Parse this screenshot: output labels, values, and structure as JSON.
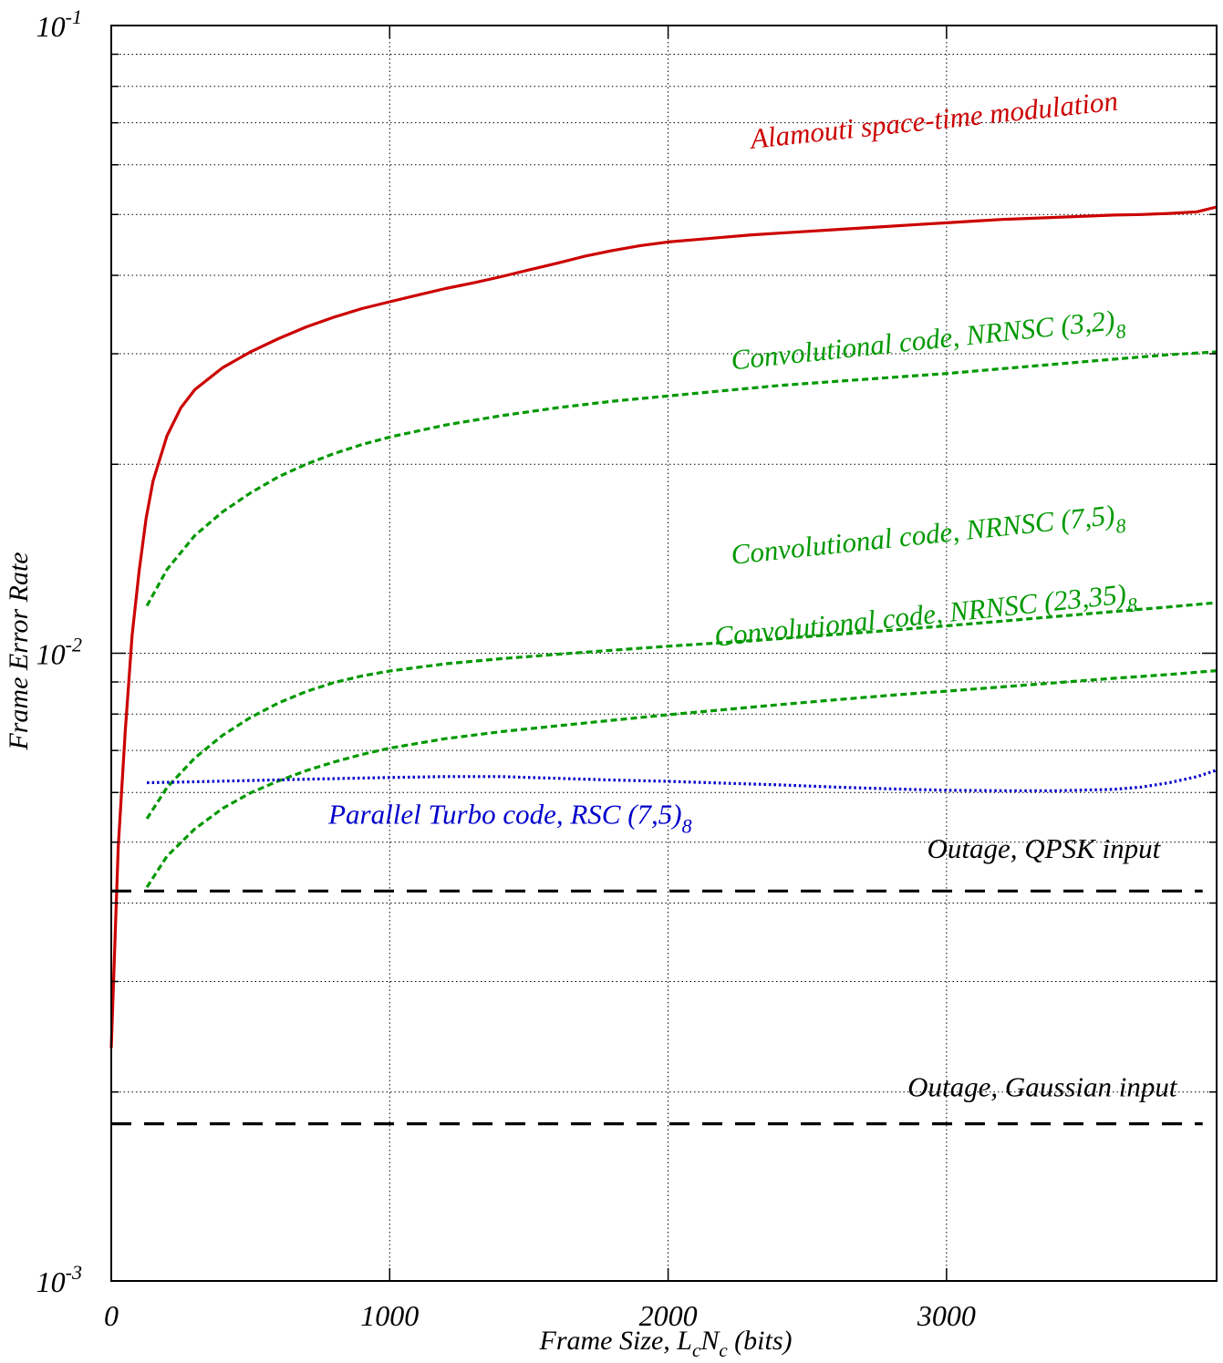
{
  "chart_data": {
    "type": "line",
    "title": "",
    "xlabel": {
      "main": "Frame Size, L",
      "sub1": "c",
      "mid": "N",
      "sub2": "c",
      "tail": " (bits)"
    },
    "ylabel": "Frame Error Rate",
    "xlim": [
      0,
      3970
    ],
    "ylim": [
      0.001,
      0.1
    ],
    "yscale": "log",
    "grid": true,
    "x_ticks": [
      {
        "value": 0,
        "label": "0"
      },
      {
        "value": 1000,
        "label": "1000"
      },
      {
        "value": 2000,
        "label": "2000"
      },
      {
        "value": 3000,
        "label": "3000"
      }
    ],
    "y_ticks": [
      {
        "value": 0.001,
        "base": "10",
        "exp": "-3"
      },
      {
        "value": 0.01,
        "base": "10",
        "exp": "-2"
      },
      {
        "value": 0.1,
        "base": "10",
        "exp": "-1"
      }
    ],
    "series": [
      {
        "label": "Alamouti space-time modulation",
        "label_sub": "",
        "color": "#cc0000",
        "style": "solid",
        "label_x": 2300,
        "label_y": 0.0637,
        "label_angle": -6,
        "x": [
          0,
          25,
          50,
          75,
          100,
          125,
          150,
          200,
          250,
          300,
          400,
          500,
          600,
          700,
          800,
          900,
          1000,
          1100,
          1200,
          1300,
          1400,
          1500,
          1600,
          1700,
          1800,
          1900,
          2000,
          2100,
          2200,
          2300,
          2400,
          2500,
          2600,
          2700,
          2800,
          2900,
          3000,
          3100,
          3200,
          3300,
          3400,
          3500,
          3600,
          3700,
          3800,
          3900,
          3970
        ],
        "y": [
          0.00235,
          0.0049,
          0.0075,
          0.0107,
          0.0135,
          0.0164,
          0.0188,
          0.0222,
          0.0246,
          0.0263,
          0.0285,
          0.0302,
          0.0317,
          0.0331,
          0.0343,
          0.0354,
          0.0363,
          0.0372,
          0.0381,
          0.0389,
          0.0398,
          0.0408,
          0.0418,
          0.0429,
          0.0438,
          0.0446,
          0.0452,
          0.0456,
          0.046,
          0.0464,
          0.0467,
          0.047,
          0.0473,
          0.0476,
          0.0479,
          0.0482,
          0.0485,
          0.0488,
          0.0491,
          0.0493,
          0.0495,
          0.0497,
          0.0499,
          0.05,
          0.0502,
          0.0505,
          0.0514
        ]
      },
      {
        "label": "Convolutional code, NRNSC (3,2)",
        "label_sub": "8",
        "color": "#009900",
        "style": "dashed",
        "label_x": 2230,
        "label_y": 0.0283,
        "label_angle": -6,
        "x": [
          128,
          200,
          300,
          400,
          500,
          600,
          700,
          800,
          900,
          1000,
          1200,
          1400,
          1600,
          1800,
          2000,
          2200,
          2400,
          2600,
          2800,
          3000,
          3200,
          3400,
          3600,
          3800,
          3970
        ],
        "y": [
          0.0119,
          0.0136,
          0.0154,
          0.0168,
          0.018,
          0.0191,
          0.02,
          0.0208,
          0.0215,
          0.0221,
          0.0231,
          0.0239,
          0.0246,
          0.0252,
          0.0257,
          0.0262,
          0.0267,
          0.0271,
          0.0275,
          0.0279,
          0.0284,
          0.0289,
          0.0294,
          0.0299,
          0.0302
        ]
      },
      {
        "label": "Convolutional code, NRNSC (7,5)",
        "label_sub": "8",
        "color": "#009900",
        "style": "dashed",
        "label_x": 2230,
        "label_y": 0.01386,
        "label_angle": -6,
        "x": [
          128,
          200,
          300,
          400,
          500,
          600,
          700,
          800,
          900,
          1000,
          1200,
          1400,
          1600,
          1800,
          2000,
          2200,
          2400,
          2600,
          2800,
          3000,
          3200,
          3400,
          3600,
          3800,
          3970
        ],
        "y": [
          0.00545,
          0.00611,
          0.00681,
          0.0074,
          0.0079,
          0.00833,
          0.00869,
          0.00898,
          0.0092,
          0.00937,
          0.00962,
          0.0098,
          0.00996,
          0.01011,
          0.01026,
          0.0104,
          0.01055,
          0.01071,
          0.01088,
          0.01106,
          0.01125,
          0.01145,
          0.01165,
          0.01185,
          0.01204
        ]
      },
      {
        "label": "Convolutional code, NRNSC (23,35)",
        "label_sub": "8",
        "color": "#009900",
        "style": "dashed",
        "label_x": 2170,
        "label_y": 0.01026,
        "label_angle": -6,
        "x": [
          128,
          200,
          300,
          400,
          500,
          600,
          700,
          800,
          900,
          1000,
          1200,
          1400,
          1600,
          1800,
          2000,
          2200,
          2400,
          2600,
          2800,
          3000,
          3200,
          3400,
          3600,
          3800,
          3970
        ],
        "y": [
          0.00424,
          0.00475,
          0.00525,
          0.00566,
          0.00599,
          0.00626,
          0.0065,
          0.00671,
          0.0069,
          0.00706,
          0.00731,
          0.0075,
          0.00766,
          0.00782,
          0.00798,
          0.00813,
          0.00828,
          0.00843,
          0.00857,
          0.0087,
          0.00884,
          0.00898,
          0.00912,
          0.00925,
          0.00938
        ]
      },
      {
        "label": "Parallel Turbo code, RSC (7,5)",
        "label_sub": "8",
        "color": "#0000cc",
        "style": "dotted",
        "label_x": 780,
        "label_y": 0.00535,
        "label_angle": 0,
        "x": [
          128,
          300,
          500,
          700,
          1000,
          1200,
          1400,
          1600,
          1800,
          2000,
          2200,
          2400,
          2600,
          2800,
          3000,
          3200,
          3400,
          3600,
          3700,
          3800,
          3900,
          3970
        ],
        "y": [
          0.00622,
          0.00624,
          0.00627,
          0.0063,
          0.00634,
          0.00636,
          0.00636,
          0.00632,
          0.00628,
          0.00625,
          0.00621,
          0.00617,
          0.00612,
          0.00608,
          0.00605,
          0.00604,
          0.00604,
          0.00607,
          0.00612,
          0.00622,
          0.00636,
          0.00651
        ]
      },
      {
        "label": "Outage, QPSK input",
        "label_sub": "",
        "color": "#000000",
        "style": "longdash",
        "label_x": 2930,
        "label_y": 0.00472,
        "label_angle": 0,
        "x": [
          0,
          3920
        ],
        "y": [
          0.00418,
          0.00418
        ]
      },
      {
        "label": "Outage, Gaussian input",
        "label_sub": "",
        "color": "#000000",
        "style": "longdash",
        "label_x": 2860,
        "label_y": 0.00197,
        "label_angle": 0,
        "x": [
          0,
          3920
        ],
        "y": [
          0.00178,
          0.00178
        ]
      }
    ]
  }
}
